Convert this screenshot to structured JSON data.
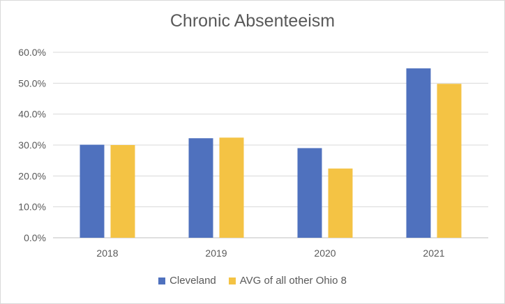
{
  "chart_data": {
    "type": "bar",
    "title": "Chronic Absenteeism",
    "categories": [
      "2018",
      "2019",
      "2020",
      "2021"
    ],
    "series": [
      {
        "name": "Cleveland",
        "values": [
          30.1,
          32.2,
          29.0,
          54.8
        ],
        "color": "#4f71be"
      },
      {
        "name": "AVG of all other Ohio 8",
        "values": [
          30.0,
          32.4,
          22.4,
          49.8
        ],
        "color": "#f4c344"
      }
    ],
    "ylim": [
      0,
      60
    ],
    "yticks": [
      "0.0%",
      "10.0%",
      "20.0%",
      "30.0%",
      "40.0%",
      "50.0%",
      "60.0%"
    ],
    "xlabel": "",
    "ylabel": "",
    "grid": true,
    "legend": "bottom"
  }
}
